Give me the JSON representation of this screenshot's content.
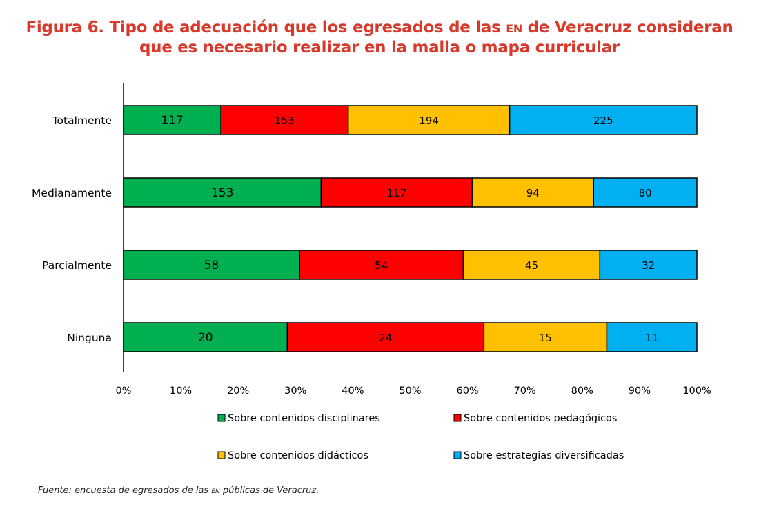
{
  "title": {
    "line1_before": "Figura 6. Tipo de adecuación que los egresados de las ",
    "line1_abbr": "en",
    "line1_after": " de Veracruz consideran",
    "line2": "que es necesario realizar en la malla o mapa curricular"
  },
  "source": {
    "before": "Fuente: encuesta de egresados de las ",
    "abbr": "en",
    "after": " públicas de Veracruz."
  },
  "chart_data": {
    "type": "bar",
    "orientation": "horizontal",
    "stacked": true,
    "normalized": "percent",
    "categories": [
      "Totalmente",
      "Medianamente",
      "Parcialmente",
      "Ninguna"
    ],
    "series": [
      {
        "name": "Sobre contenidos disciplinares",
        "color": "#00b050",
        "values": [
          117,
          153,
          58,
          20
        ]
      },
      {
        "name": "Sobre contenidos pedagógicos",
        "color": "#ff0000",
        "values": [
          153,
          117,
          54,
          24
        ]
      },
      {
        "name": "Sobre contenidos didácticos",
        "color": "#ffc000",
        "values": [
          194,
          94,
          45,
          15
        ]
      },
      {
        "name": "Sobre estrategias diversificadas",
        "color": "#00b0f0",
        "values": [
          225,
          80,
          32,
          11
        ]
      }
    ],
    "xticks": [
      "0%",
      "10%",
      "20%",
      "30%",
      "40%",
      "50%",
      "60%",
      "70%",
      "80%",
      "90%",
      "100%"
    ],
    "xlim": [
      0,
      100
    ],
    "grid": false,
    "legend_position": "bottom"
  }
}
